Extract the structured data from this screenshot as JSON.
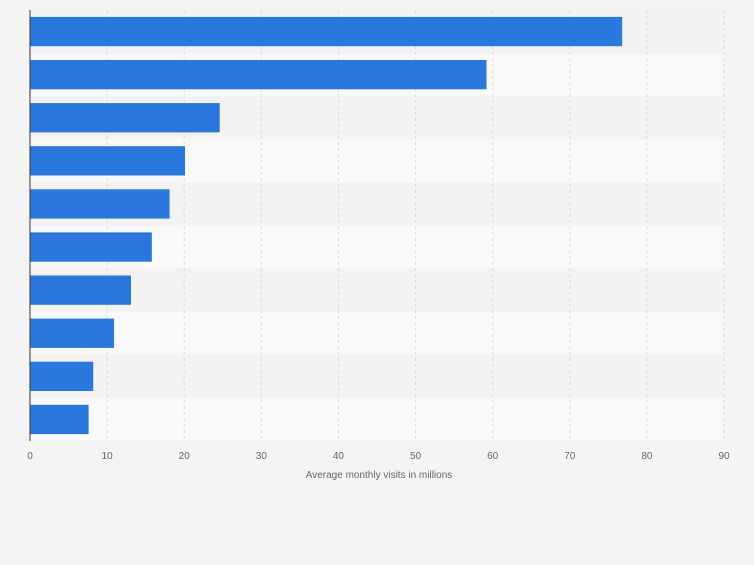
{
  "chart_data": {
    "type": "bar",
    "orientation": "horizontal",
    "categories": [
      "",
      "",
      "",
      "",
      "",
      "",
      "",
      "",
      "",
      ""
    ],
    "values": [
      76.8,
      59.2,
      24.6,
      20.1,
      18.1,
      15.8,
      13.1,
      10.9,
      8.2,
      7.6
    ],
    "title": "",
    "xlabel": "Average monthly visits in millions",
    "ylabel": "",
    "xlim": [
      0,
      90
    ],
    "xticks": [
      0,
      10,
      20,
      30,
      40,
      50,
      60,
      70,
      80,
      90
    ],
    "grid": true,
    "bar_color": "#2a77de",
    "band_colors": [
      "#f3f3f3",
      "#f9f9f9"
    ],
    "gridline_color": "#dcdcdc",
    "axis_color": "#333333"
  }
}
